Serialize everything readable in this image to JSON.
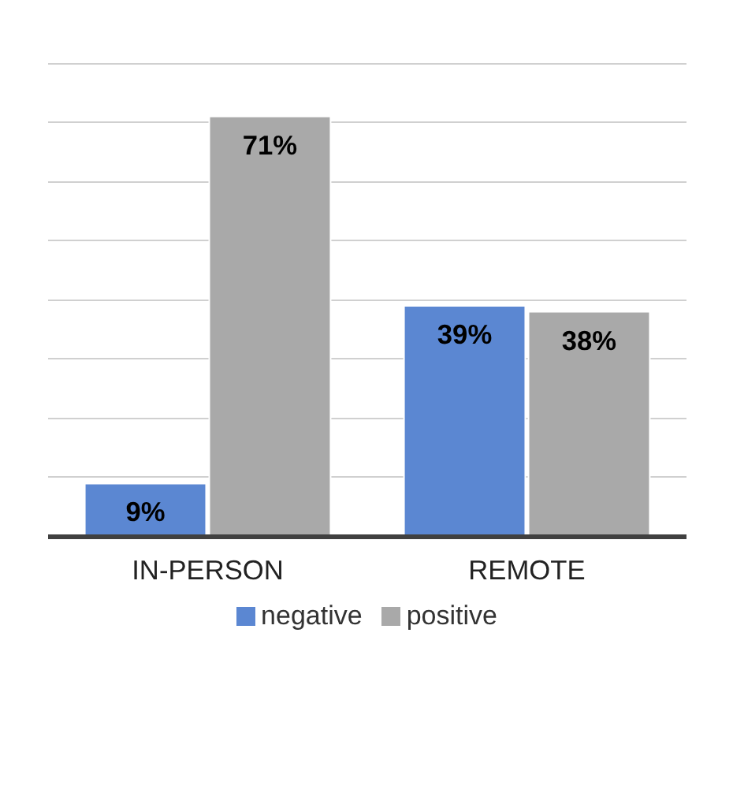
{
  "chart_data": {
    "type": "bar",
    "categories": [
      "IN-PERSON",
      "REMOTE"
    ],
    "series": [
      {
        "name": "negative",
        "color": "#5b87d2",
        "values": [
          9,
          39
        ],
        "value_labels": [
          "9%",
          "39%"
        ]
      },
      {
        "name": "positive",
        "color": "#a9a9a9",
        "values": [
          71,
          38
        ],
        "value_labels": [
          "71%",
          "38%"
        ]
      }
    ],
    "tick_labels": "x",
    "grid": "y",
    "legend": "bottom"
  }
}
